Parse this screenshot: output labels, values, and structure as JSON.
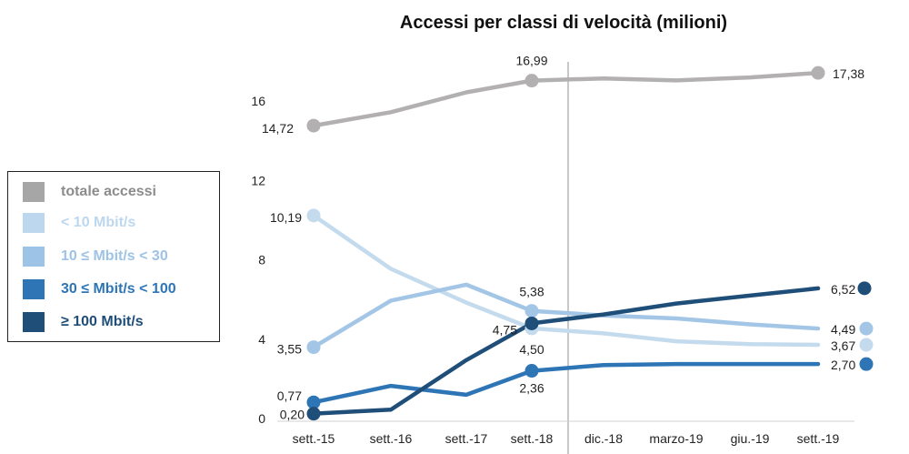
{
  "chart_data": {
    "type": "line",
    "title": "Accessi per classi di velocità (milioni)",
    "categories": [
      "sett.-15",
      "sett.-16",
      "sett.-17",
      "sett.-18",
      "dic.-18",
      "marzo-19",
      "giu.-19",
      "sett.-19"
    ],
    "y_ticks": [
      "0",
      "4",
      "8",
      "12",
      "16"
    ],
    "ylim": [
      0,
      18
    ],
    "grid": false,
    "legend_position": "left",
    "series": [
      {
        "name": "totale accessi",
        "color": "#b3b0b1",
        "values": [
          14.72,
          15.4,
          16.4,
          16.99,
          17.1,
          17.0,
          17.15,
          17.38
        ],
        "labels": [
          "14,72",
          "",
          "",
          "16,99",
          "",
          "",
          "",
          "17,38"
        ]
      },
      {
        "name": "< 10 Mbit/s",
        "color": "#c4dbee",
        "values": [
          10.19,
          7.5,
          5.8,
          4.5,
          4.25,
          3.85,
          3.7,
          3.67
        ],
        "labels": [
          "10,19",
          "",
          "",
          "4,50",
          "",
          "",
          "",
          "3,67"
        ]
      },
      {
        "name": "10 ≤ Mbit/s  < 30",
        "color": "#a3c5e6",
        "values": [
          3.55,
          5.9,
          6.7,
          5.38,
          5.15,
          5.0,
          4.7,
          4.49
        ],
        "labels": [
          "3,55",
          "",
          "",
          "5,38",
          "",
          "",
          "",
          "4,49"
        ]
      },
      {
        "name": "30 ≤ Mbit/s < 100",
        "color": "#2e75b6",
        "values": [
          0.77,
          1.6,
          1.15,
          2.36,
          2.65,
          2.7,
          2.7,
          2.7
        ],
        "labels": [
          "0,77",
          "",
          "",
          "2,36",
          "",
          "",
          "",
          "2,70"
        ]
      },
      {
        "name": "≥ 100 Mbit/s",
        "color": "#1f4e79",
        "values": [
          0.2,
          0.4,
          2.9,
          4.75,
          5.2,
          5.75,
          6.15,
          6.52
        ],
        "labels": [
          "0,20",
          "",
          "",
          "4,75",
          "",
          "",
          "",
          "6,52"
        ]
      }
    ]
  }
}
